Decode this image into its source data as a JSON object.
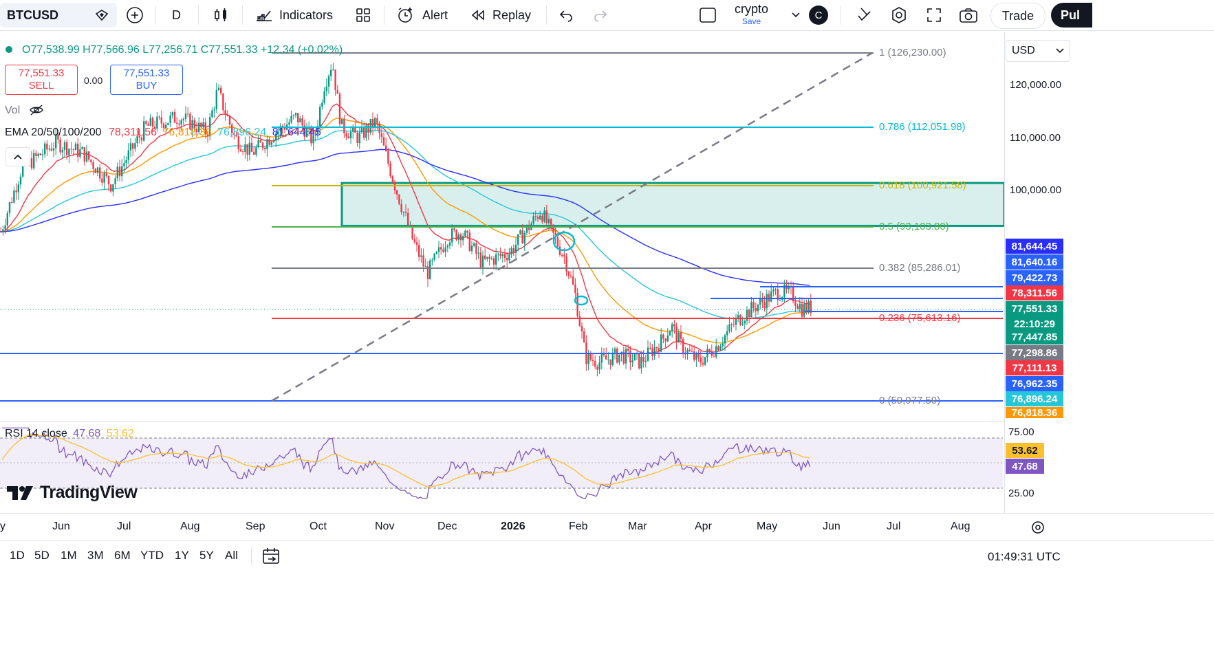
{
  "toolbar": {
    "symbol": "BTCUSD",
    "interval": "D",
    "indicators_label": "Indicators",
    "alert_label": "Alert",
    "replay_label": "Replay",
    "layout_name": "crypto",
    "save_label": "Save",
    "avatar_letter": "C",
    "trade_label": "Trade",
    "publish_label": "Pul"
  },
  "legend": {
    "open": "O77,538.99",
    "high": "H77,566.96",
    "low": "L77,256.71",
    "close": "C77,551.33",
    "change": "+12.34 (+0.02%)",
    "sell_price": "77,551.33",
    "sell_label": "SELL",
    "spread": "0.00",
    "buy_price": "77,551.33",
    "buy_label": "BUY",
    "vol_label": "Vol",
    "ema_label": "EMA 20/50/100/200",
    "ema20": "78,311.56",
    "ema50": "76,818.36",
    "ema100": "76,896.24",
    "ema200": "81,644.45",
    "rsi_label": "RSI 14 close",
    "rsi_value": "47.68",
    "rsi_ma": "53.62"
  },
  "currency": "USD",
  "price_scale": [
    "120,000.00",
    "110,000.00",
    "100,000.00"
  ],
  "price_labels": [
    {
      "text": "81,644.45",
      "color": "#2a2efc"
    },
    {
      "text": "81,640.16",
      "color": "#2962ff"
    },
    {
      "text": "79,422.73",
      "color": "#2962ff"
    },
    {
      "text": "78,311.56",
      "color": "#f23645"
    },
    {
      "text": "77,551.33",
      "color": "#089981"
    },
    {
      "text": "22:10:29",
      "color": "#089981"
    },
    {
      "text": "77,447.85",
      "color": "#089981"
    },
    {
      "text": "77,298.86",
      "color": "#787b86"
    },
    {
      "text": "77,111.13",
      "color": "#f23645"
    },
    {
      "text": "76,962.35",
      "color": "#2962ff"
    },
    {
      "text": "76,896.24",
      "color": "#26c6da"
    },
    {
      "text": "76,818.36",
      "color": "#ff9800"
    }
  ],
  "fib_levels": [
    {
      "text": "1 (126,230.00)",
      "color": "#787b86"
    },
    {
      "text": "0.786 (112,051.98)",
      "color": "#00bcd4"
    },
    {
      "text": "0.618 (100,921.58)",
      "color": "#c9b500"
    },
    {
      "text": "0.5 (93,103.80)",
      "color": "#4caf50"
    },
    {
      "text": "0.382 (85,286.01)",
      "color": "#787b86"
    },
    {
      "text": "0.236 (75,613.16)",
      "color": "#f23645"
    },
    {
      "text": "0 (59,977.59)",
      "color": "#787b86"
    }
  ],
  "rsi_scale": [
    "75.00",
    "25.00"
  ],
  "rsi_labels": [
    {
      "text": "53.62",
      "color": "#fbc02d"
    },
    {
      "text": "47.68",
      "color": "#7e57c2"
    }
  ],
  "time_axis": [
    "y",
    "Jun",
    "Jul",
    "Aug",
    "Sep",
    "Oct",
    "Nov",
    "Dec",
    "2026",
    "Feb",
    "Mar",
    "Apr",
    "May",
    "Jun",
    "Jul",
    "Aug"
  ],
  "ranges": [
    "1D",
    "5D",
    "1M",
    "3M",
    "6M",
    "YTD",
    "1Y",
    "5Y",
    "All"
  ],
  "clock": "01:49:31 UTC",
  "watermark": "TradingView",
  "colors": {
    "up": "#089981",
    "down": "#f23645",
    "ema20": "#f23645",
    "ema50": "#ff9800",
    "ema100": "#26c6da",
    "ema200": "#2a2efc",
    "rsi": "#7e57c2",
    "rsi_ma": "#fbc02d"
  }
}
